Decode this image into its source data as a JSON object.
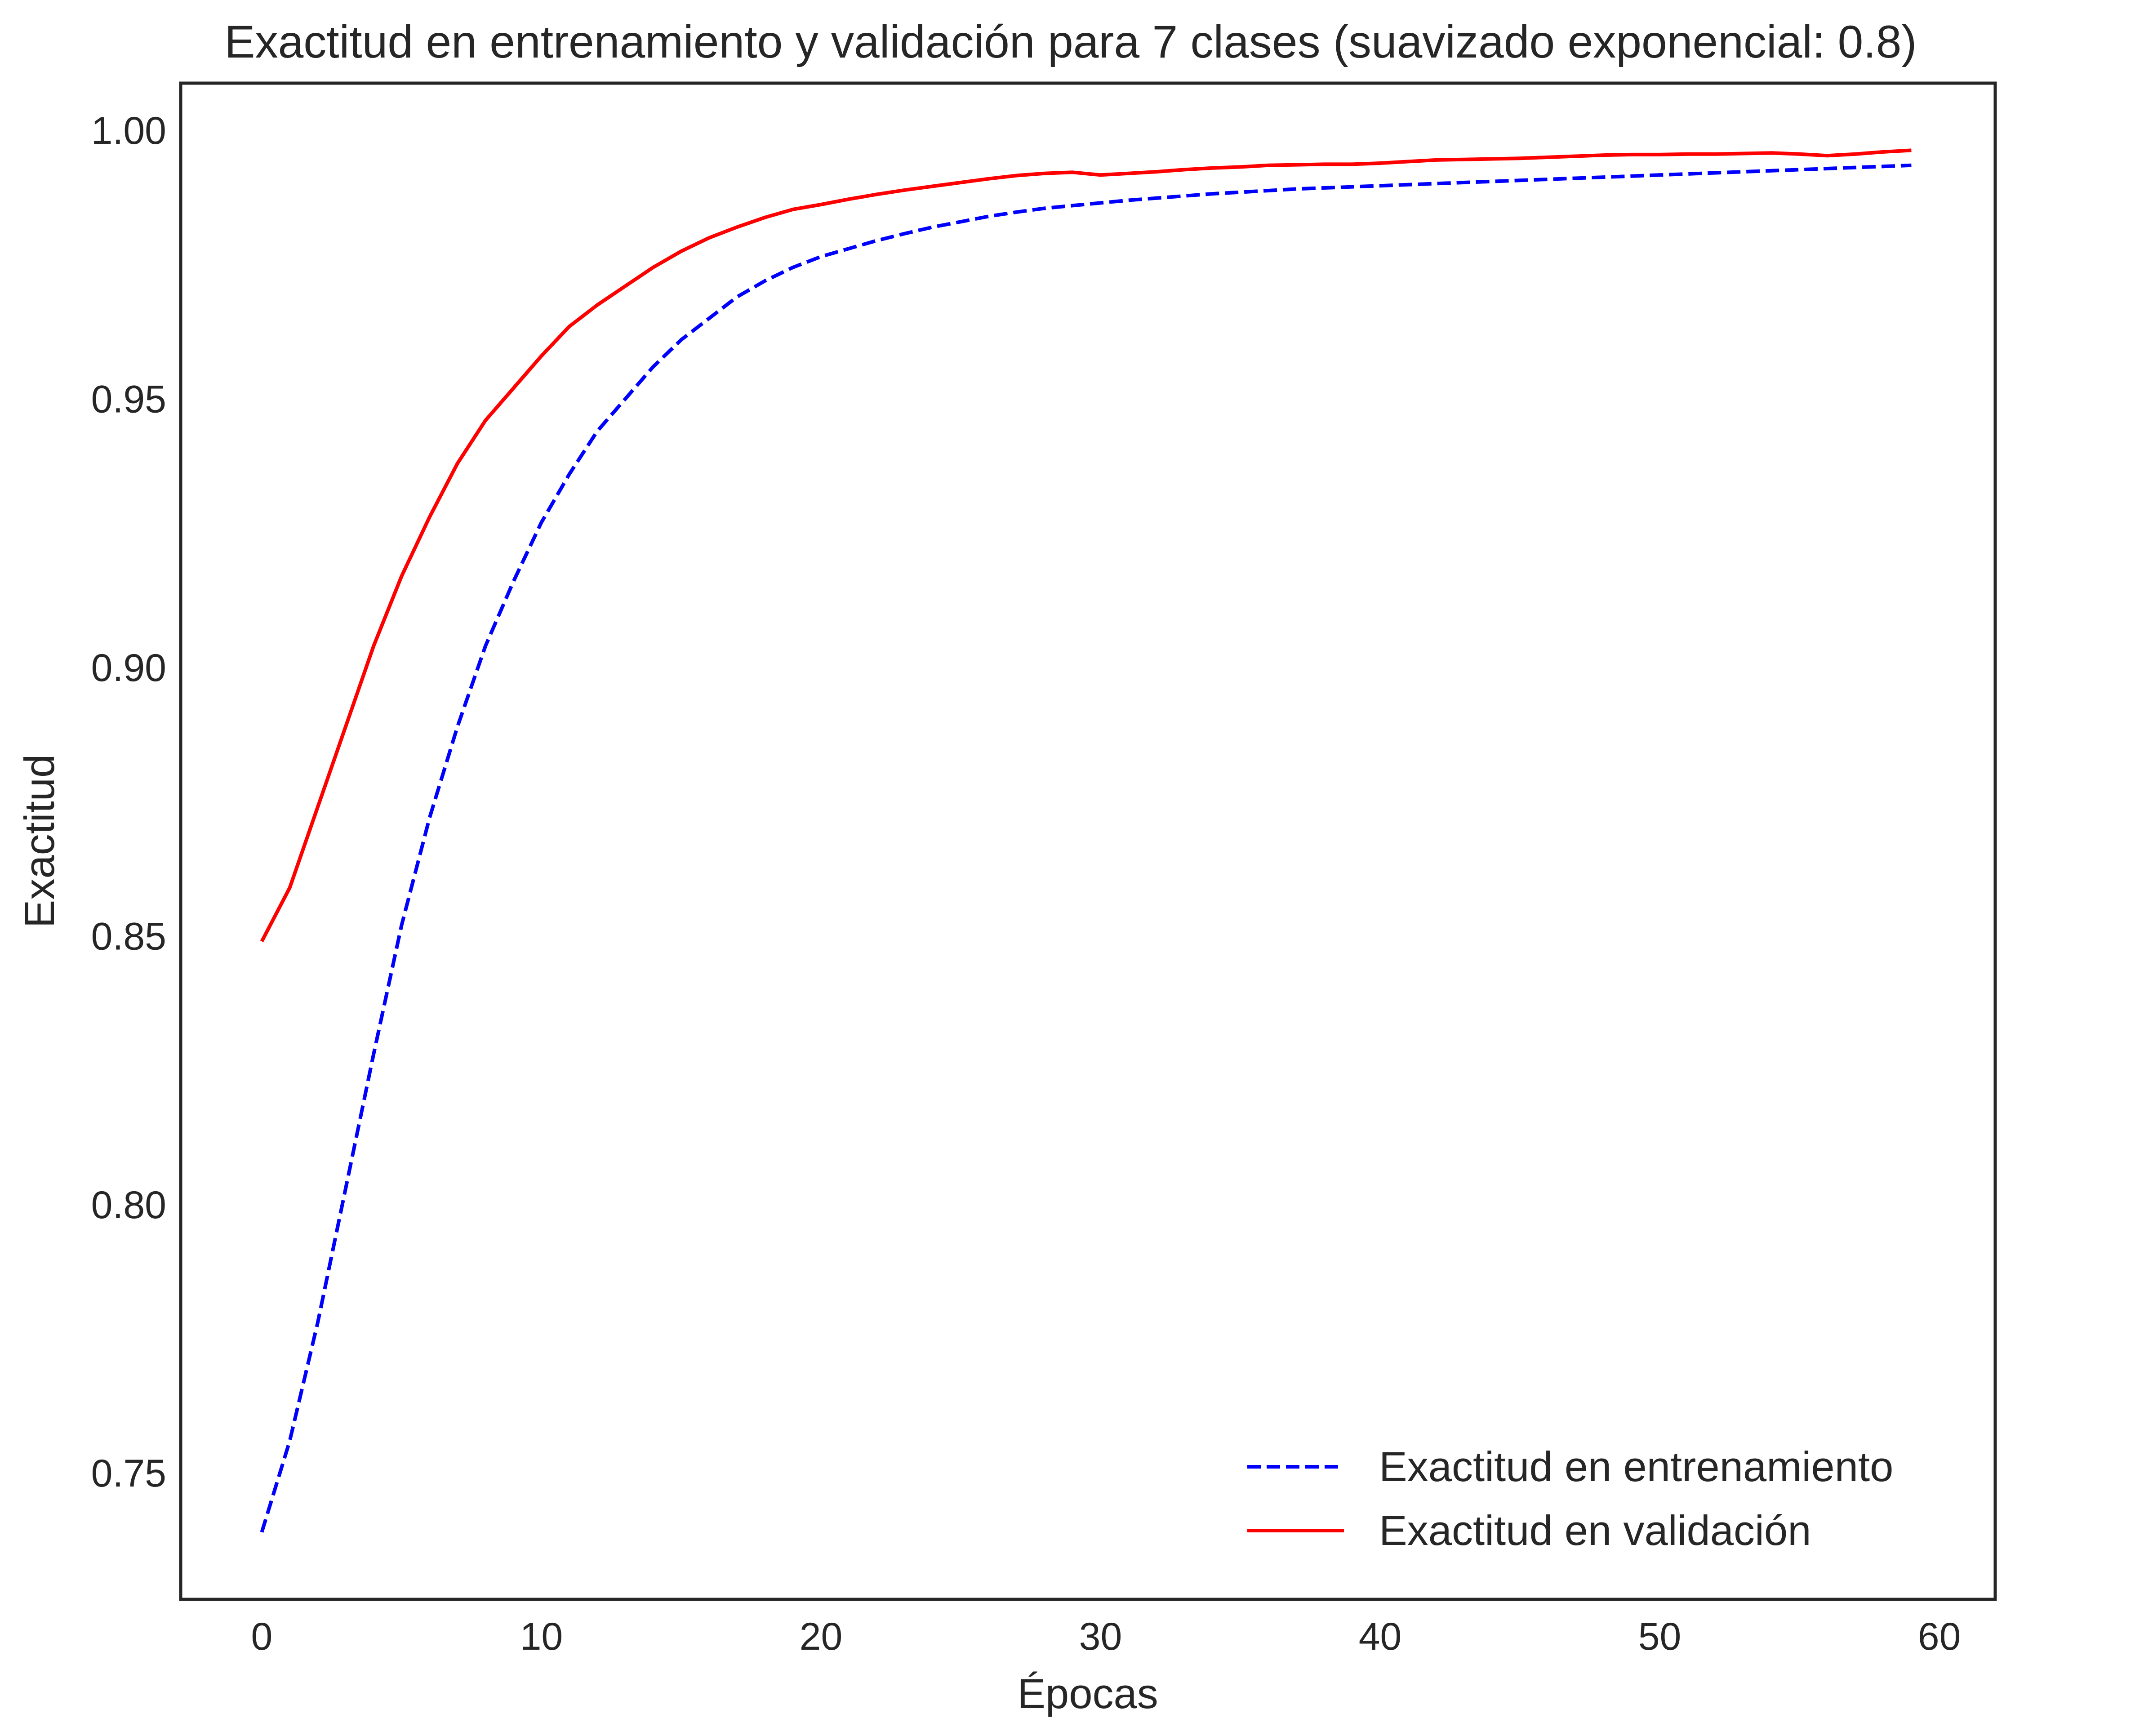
{
  "chart_data": {
    "type": "line",
    "title": "Exactitud en entrenamiento y validación para 7 clases (suavizado exponencial: 0.8)",
    "xlabel": "Épocas",
    "ylabel": "Exactitud",
    "xlim": [
      -2.9,
      62
    ],
    "ylim": [
      0.7265,
      1.0088
    ],
    "xticks": [
      0,
      10,
      20,
      30,
      40,
      50,
      60
    ],
    "yticks": [
      0.75,
      0.8,
      0.85,
      0.9,
      0.95,
      1.0
    ],
    "xtick_labels": [
      "0",
      "10",
      "20",
      "30",
      "40",
      "50",
      "60"
    ],
    "ytick_labels": [
      "0.75",
      "0.80",
      "0.85",
      "0.90",
      "0.95",
      "1.00"
    ],
    "grid": false,
    "legend_position": "lower-right",
    "x": [
      0,
      1,
      2,
      3,
      4,
      5,
      6,
      7,
      8,
      9,
      10,
      11,
      12,
      13,
      14,
      15,
      16,
      17,
      18,
      19,
      20,
      21,
      22,
      23,
      24,
      25,
      26,
      27,
      28,
      29,
      30,
      31,
      32,
      33,
      34,
      35,
      36,
      37,
      38,
      39,
      40,
      41,
      42,
      43,
      44,
      45,
      46,
      47,
      48,
      49,
      50,
      51,
      52,
      53,
      54,
      55,
      56,
      57,
      58,
      59
    ],
    "series": [
      {
        "name": "Exactitud en entrenamiento",
        "color": "#0000ff",
        "style": "dashed",
        "values": [
          0.739,
          0.756,
          0.778,
          0.803,
          0.828,
          0.852,
          0.872,
          0.889,
          0.904,
          0.916,
          0.927,
          0.936,
          0.944,
          0.95,
          0.956,
          0.961,
          0.965,
          0.969,
          0.972,
          0.9745,
          0.9765,
          0.978,
          0.9795,
          0.9808,
          0.982,
          0.983,
          0.984,
          0.9848,
          0.9855,
          0.986,
          0.9865,
          0.987,
          0.9874,
          0.9878,
          0.9882,
          0.9885,
          0.9888,
          0.9891,
          0.9893,
          0.9895,
          0.9897,
          0.9899,
          0.9901,
          0.9903,
          0.9905,
          0.9907,
          0.9909,
          0.9911,
          0.9913,
          0.9915,
          0.9917,
          0.9919,
          0.9921,
          0.9923,
          0.9925,
          0.9927,
          0.9929,
          0.9931,
          0.9933,
          0.9935
        ]
      },
      {
        "name": "Exactitud en validación",
        "color": "#ff0000",
        "style": "solid",
        "values": [
          0.849,
          0.859,
          0.874,
          0.889,
          0.904,
          0.917,
          0.928,
          0.938,
          0.946,
          0.952,
          0.958,
          0.9635,
          0.9675,
          0.971,
          0.9745,
          0.9775,
          0.98,
          0.982,
          0.9838,
          0.9853,
          0.9862,
          0.9872,
          0.9881,
          0.9889,
          0.9896,
          0.9903,
          0.991,
          0.9916,
          0.992,
          0.9922,
          0.9917,
          0.992,
          0.9923,
          0.9927,
          0.993,
          0.9932,
          0.9935,
          0.9936,
          0.9937,
          0.9937,
          0.9939,
          0.9942,
          0.9945,
          0.9946,
          0.9947,
          0.9948,
          0.995,
          0.9952,
          0.9954,
          0.9955,
          0.9955,
          0.9956,
          0.9956,
          0.9957,
          0.9958,
          0.9956,
          0.9953,
          0.9956,
          0.996,
          0.9963
        ]
      }
    ]
  }
}
